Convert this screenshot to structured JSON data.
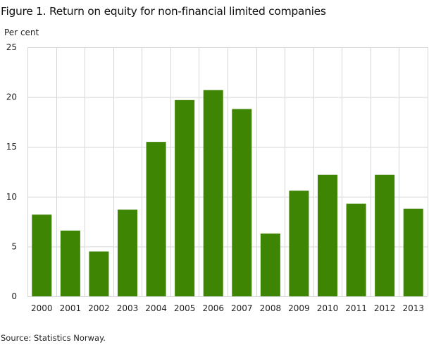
{
  "chart_data": {
    "type": "bar",
    "title": "Figure 1. Return on equity for non-financial limited companies",
    "ylabel": "Per cent",
    "xlabel": "",
    "categories": [
      "2000",
      "2001",
      "2002",
      "2003",
      "2004",
      "2005",
      "2006",
      "2007",
      "2008",
      "2009",
      "2010",
      "2011",
      "2012",
      "2013"
    ],
    "values": [
      8.2,
      6.6,
      4.5,
      8.7,
      15.5,
      19.7,
      20.7,
      18.8,
      6.3,
      10.6,
      12.2,
      9.3,
      12.2,
      8.8
    ],
    "ylim": [
      0,
      25
    ],
    "yticks": [
      0,
      5,
      10,
      15,
      20,
      25
    ],
    "grid": true,
    "bar_color": "#3d8503",
    "grid_color": "#d6d6d6",
    "source": "Source: Statistics Norway."
  }
}
